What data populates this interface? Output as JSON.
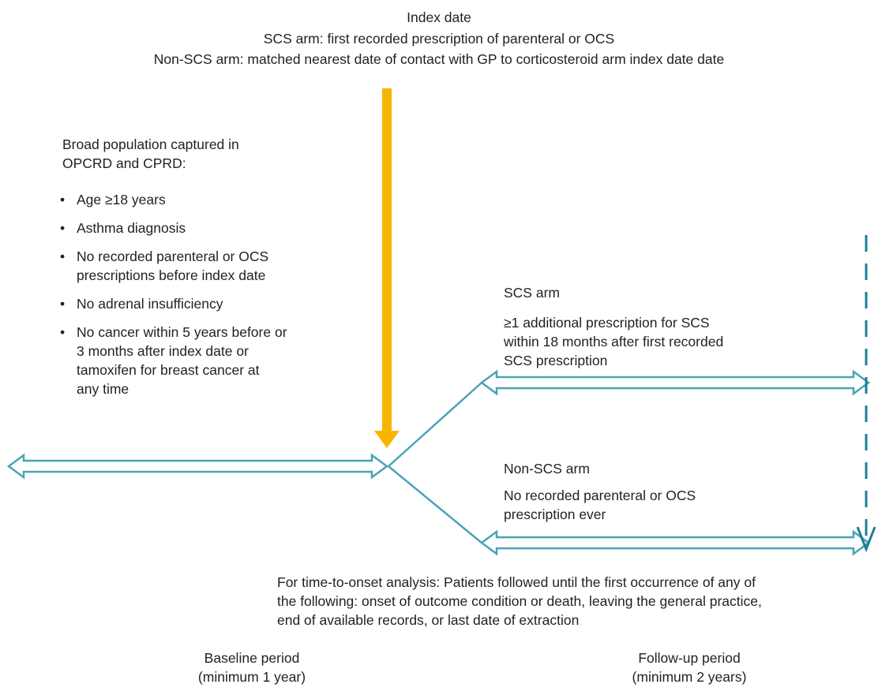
{
  "index_date": {
    "title": "Index date",
    "scs_line": "SCS arm: first recorded prescription of parenteral or OCS",
    "non_scs_line": "Non-SCS arm: matched nearest date of contact with GP to corticosteroid arm index date date"
  },
  "population": {
    "heading_line1": "Broad population captured in",
    "heading_line2": "OPCRD and CPRD:",
    "bullet_glyph": "•",
    "criteria": [
      [
        "Age ≥18 years"
      ],
      [
        "Asthma diagnosis"
      ],
      [
        "No recorded parenteral or OCS",
        "prescriptions before index date"
      ],
      [
        "No adrenal insufficiency"
      ],
      [
        "No cancer within 5 years before or",
        "3 months after index date or",
        "tamoxifen for breast cancer at",
        "any time"
      ]
    ]
  },
  "scs_arm": {
    "title": "SCS arm",
    "lines": [
      "≥1 additional prescription for SCS",
      "within 18 months after first recorded",
      "SCS prescription"
    ]
  },
  "non_scs_arm": {
    "title": "Non-SCS arm",
    "lines": [
      "No recorded parenteral or OCS",
      "prescription ever"
    ]
  },
  "time_to_onset": {
    "lines": [
      "For time-to-onset analysis: Patients followed until the first occurrence of any of",
      "the following: onset of outcome condition or death, leaving the general practice,",
      "end of available records, or last date of extraction"
    ]
  },
  "baseline_period": {
    "line1": "Baseline period",
    "line2": "(minimum 1 year)"
  },
  "followup_period": {
    "line1": "Follow-up period",
    "line2": "(minimum 2 years)"
  },
  "colors": {
    "index_arrow": "#f7b500",
    "timeline": "#4aa3b8",
    "dashed_line": "#1b7f97",
    "text": "#231f20"
  }
}
